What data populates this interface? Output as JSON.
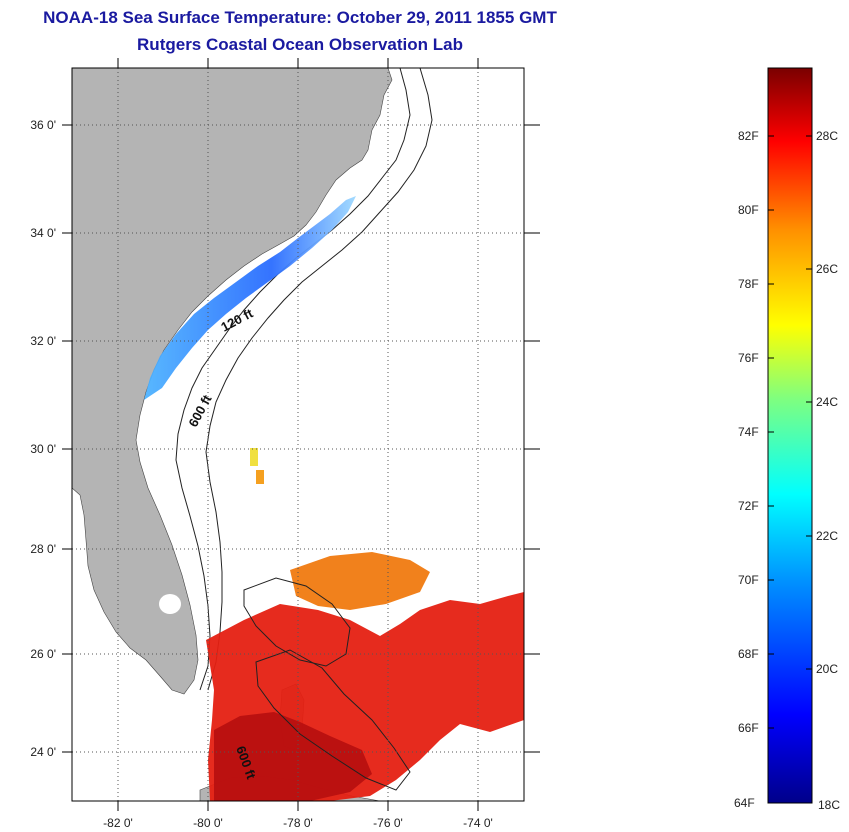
{
  "header": {
    "title": "NOAA-18 Sea Surface Temperature:  October 29, 2011 1855 GMT",
    "subtitle": "Rutgers Coastal Ocean Observation Lab"
  },
  "map": {
    "lon_ticks": [
      "-82 0'",
      "-80 0'",
      "-78 0'",
      "-76 0'",
      "-74 0'"
    ],
    "lat_ticks": [
      "36 0'",
      "34 0'",
      "32 0'",
      "30 0'",
      "28 0'",
      "26 0'",
      "24 0'"
    ],
    "contour_labels": [
      "120 ft",
      "600 ft",
      "600 ft"
    ],
    "land_color": "#b4b4b4",
    "ocean_color": "#ffffff"
  },
  "colorbar": {
    "fahrenheit_labels": [
      "82F",
      "80F",
      "78F",
      "76F",
      "74F",
      "72F",
      "70F",
      "68F",
      "66F",
      "64F"
    ],
    "celsius_labels": [
      "28C",
      "26C",
      "24C",
      "22C",
      "20C",
      "18C"
    ],
    "min_color": "#00008a",
    "max_color": "#7a0000"
  }
}
